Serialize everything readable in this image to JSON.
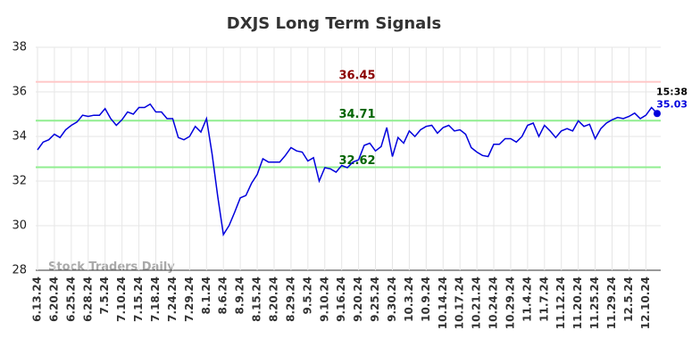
{
  "chart_data": {
    "type": "line",
    "title": "DXJS Long Term Signals",
    "categories": [
      "6.13.24",
      null,
      null,
      "6.20.24",
      null,
      null,
      "6.25.24",
      null,
      null,
      "6.28.24",
      null,
      null,
      "7.5.24",
      null,
      null,
      "7.10.24",
      null,
      null,
      "7.15.24",
      null,
      null,
      "7.18.24",
      null,
      null,
      "7.24.24",
      null,
      null,
      "7.29.24",
      null,
      null,
      "8.1.24",
      null,
      null,
      "8.6.24",
      null,
      null,
      "8.9.24",
      null,
      null,
      "8.15.24",
      null,
      null,
      "8.20.24",
      null,
      null,
      "8.29.24",
      null,
      null,
      "9.5.24",
      null,
      null,
      "9.10.24",
      null,
      null,
      "9.16.24",
      null,
      null,
      "9.20.24",
      null,
      null,
      "9.25.24",
      null,
      null,
      "9.30.24",
      null,
      null,
      "10.3.24",
      null,
      null,
      "10.9.24",
      null,
      null,
      "10.14.24",
      null,
      null,
      "10.17.24",
      null,
      null,
      "10.21.24",
      null,
      null,
      "10.24.24",
      null,
      null,
      "10.29.24",
      null,
      null,
      "11.4.24",
      null,
      null,
      "11.7.24",
      null,
      null,
      "11.12.24",
      null,
      null,
      "11.20.24",
      null,
      null,
      "11.25.24",
      null,
      null,
      "11.29.24",
      null,
      null,
      "12.5.24",
      null,
      null,
      "12.10.24",
      null,
      null
    ],
    "values": [
      33.4,
      33.75,
      33.85,
      34.1,
      33.95,
      34.3,
      34.5,
      34.65,
      34.95,
      34.9,
      34.95,
      34.95,
      35.25,
      34.8,
      34.5,
      34.75,
      35.1,
      35.0,
      35.3,
      35.3,
      35.45,
      35.1,
      35.1,
      34.8,
      34.8,
      33.95,
      33.85,
      34.0,
      34.45,
      34.2,
      34.8,
      33.2,
      31.3,
      29.6,
      30.0,
      30.6,
      31.25,
      31.35,
      31.9,
      32.3,
      33.0,
      32.85,
      32.85,
      32.85,
      33.15,
      33.5,
      33.35,
      33.3,
      32.9,
      33.05,
      32.0,
      32.6,
      32.55,
      32.4,
      32.7,
      32.6,
      32.85,
      32.95,
      33.6,
      33.7,
      33.35,
      33.55,
      34.4,
      33.1,
      33.95,
      33.7,
      34.25,
      34.0,
      34.3,
      34.45,
      34.5,
      34.15,
      34.4,
      34.5,
      34.25,
      34.3,
      34.1,
      33.5,
      33.3,
      33.15,
      33.1,
      33.65,
      33.65,
      33.9,
      33.9,
      33.75,
      34.0,
      34.5,
      34.6,
      34.0,
      34.5,
      34.25,
      33.95,
      34.25,
      34.35,
      34.25,
      34.7,
      34.45,
      34.55,
      33.9,
      34.35,
      34.6,
      34.75,
      34.85,
      34.8,
      34.9,
      35.05,
      34.8,
      34.95,
      35.3,
      35.03
    ],
    "color": "#0000dd",
    "ylim": [
      28,
      38
    ],
    "yticks": [
      28,
      30,
      32,
      34,
      36,
      38
    ],
    "grid": true,
    "hlines": [
      {
        "value": 36.45,
        "color": "#ffc8c8",
        "label_color": "#8b0000"
      },
      {
        "value": 34.71,
        "color": "#90ee90",
        "label_color": "#006400"
      },
      {
        "value": 32.62,
        "color": "#90ee90",
        "label_color": "#006400"
      }
    ],
    "last_time": "15:38",
    "watermark": "Stock Traders Daily"
  }
}
